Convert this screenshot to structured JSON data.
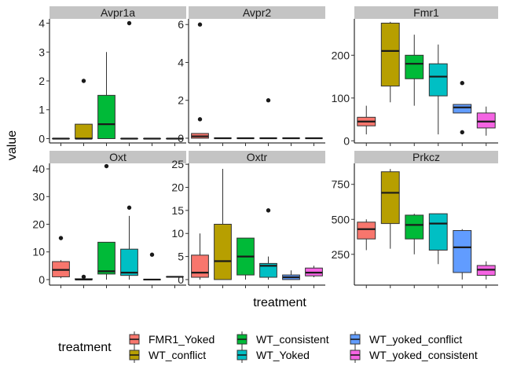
{
  "chart_data": {
    "type": "boxplot",
    "xlabel": "treatment",
    "ylabel": "value",
    "legend_title": "treatment",
    "legend_position": "bottom",
    "grid": false,
    "groups": [
      "FMR1_Yoked",
      "WT_conflict",
      "WT_consistent",
      "WT_Yoked",
      "WT_yoked_conflict",
      "WT_yoked_consistent"
    ],
    "colors": [
      "#F8766D",
      "#B79F00",
      "#00BA38",
      "#00BFC4",
      "#619CFF",
      "#F564E3"
    ],
    "panels": [
      {
        "name": "Avpr1a",
        "ylim": [
          -0.15,
          4.15
        ],
        "yticks": [
          0,
          1,
          2,
          3,
          4
        ],
        "ytick_labels": [
          "0",
          "1",
          "2",
          "3",
          "4"
        ],
        "boxes": [
          {
            "min": 0,
            "q1": 0,
            "median": 0,
            "q3": 0,
            "max": 0,
            "outliers": []
          },
          {
            "min": 0,
            "q1": 0,
            "median": 0,
            "q3": 0.5,
            "max": 0.5,
            "outliers": [
              2
            ]
          },
          {
            "min": 0,
            "q1": 0,
            "median": 0.5,
            "q3": 1.5,
            "max": 3.0,
            "outliers": []
          },
          {
            "min": 0,
            "q1": 0,
            "median": 0,
            "q3": 0,
            "max": 0,
            "outliers": [
              4
            ]
          },
          {
            "min": 0,
            "q1": 0,
            "median": 0,
            "q3": 0,
            "max": 0,
            "outliers": []
          },
          {
            "min": 0,
            "q1": 0,
            "median": 0,
            "q3": 0,
            "max": 0,
            "outliers": []
          }
        ]
      },
      {
        "name": "Avpr2",
        "ylim": [
          -0.25,
          6.3
        ],
        "yticks": [
          0,
          2,
          4,
          6
        ],
        "ytick_labels": [
          "0",
          "2",
          "4",
          "6"
        ],
        "boxes": [
          {
            "min": 0,
            "q1": 0,
            "median": 0.1,
            "q3": 0.25,
            "max": 0.25,
            "outliers": [
              1,
              6
            ]
          },
          {
            "min": 0,
            "q1": 0,
            "median": 0,
            "q3": 0,
            "max": 0,
            "outliers": []
          },
          {
            "min": 0,
            "q1": 0,
            "median": 0,
            "q3": 0,
            "max": 0,
            "outliers": []
          },
          {
            "min": 0,
            "q1": 0,
            "median": 0,
            "q3": 0,
            "max": 0,
            "outliers": [
              2
            ]
          },
          {
            "min": 0,
            "q1": 0,
            "median": 0,
            "q3": 0,
            "max": 0,
            "outliers": []
          },
          {
            "min": 0,
            "q1": 0,
            "median": 0,
            "q3": 0,
            "max": 0,
            "outliers": []
          }
        ]
      },
      {
        "name": "Fmr1",
        "ylim": [
          -5,
          285
        ],
        "yticks": [
          0,
          100,
          200
        ],
        "ytick_labels": [
          "0",
          "100",
          "200"
        ],
        "boxes": [
          {
            "min": 15,
            "q1": 35,
            "median": 45,
            "q3": 55,
            "max": 82,
            "outliers": []
          },
          {
            "min": 90,
            "q1": 128,
            "median": 210,
            "q3": 275,
            "max": 278,
            "outliers": []
          },
          {
            "min": 82,
            "q1": 145,
            "median": 180,
            "q3": 200,
            "max": 248,
            "outliers": []
          },
          {
            "min": 15,
            "q1": 105,
            "median": 150,
            "q3": 180,
            "max": 225,
            "outliers": []
          },
          {
            "min": 65,
            "q1": 65,
            "median": 78,
            "q3": 85,
            "max": 85,
            "outliers": [
              135,
              20
            ]
          },
          {
            "min": 12,
            "q1": 30,
            "median": 45,
            "q3": 65,
            "max": 80,
            "outliers": []
          }
        ]
      },
      {
        "name": "Oxt",
        "ylim": [
          -2,
          42
        ],
        "yticks": [
          0,
          10,
          20,
          30,
          40
        ],
        "ytick_labels": [
          "0",
          "10",
          "20",
          "30",
          "40"
        ],
        "boxes": [
          {
            "min": 0.5,
            "q1": 1,
            "median": 3.5,
            "q3": 6.5,
            "max": 7,
            "outliers": [
              15
            ]
          },
          {
            "min": 0,
            "q1": 0,
            "median": 0,
            "q3": 0.3,
            "max": 0.5,
            "outliers": [
              1
            ]
          },
          {
            "min": 0,
            "q1": 2,
            "median": 3,
            "q3": 13.5,
            "max": 13.5,
            "outliers": [
              41
            ]
          },
          {
            "min": 0,
            "q1": 1.5,
            "median": 2.5,
            "q3": 11,
            "max": 23,
            "outliers": [
              26
            ]
          },
          {
            "min": 0,
            "q1": 0,
            "median": 0,
            "q3": 0,
            "max": 0,
            "outliers": [
              9
            ]
          },
          {
            "min": 1,
            "q1": 1,
            "median": 1,
            "q3": 1,
            "max": 1,
            "outliers": []
          }
        ]
      },
      {
        "name": "Oxtr",
        "ylim": [
          -1.2,
          25.2
        ],
        "yticks": [
          0,
          5,
          10,
          15,
          20,
          25
        ],
        "ytick_labels": [
          "0",
          "5",
          "10",
          "15",
          "20",
          "25"
        ],
        "boxes": [
          {
            "min": 0,
            "q1": 0.5,
            "median": 1.5,
            "q3": 5.3,
            "max": 10,
            "outliers": []
          },
          {
            "min": 0,
            "q1": 0,
            "median": 4,
            "q3": 12,
            "max": 24,
            "outliers": []
          },
          {
            "min": 0,
            "q1": 1,
            "median": 5,
            "q3": 9,
            "max": 9,
            "outliers": []
          },
          {
            "min": 0,
            "q1": 0.5,
            "median": 3,
            "q3": 3.5,
            "max": 5,
            "outliers": [
              15
            ]
          },
          {
            "min": 0,
            "q1": 0,
            "median": 0.5,
            "q3": 1,
            "max": 2,
            "outliers": []
          },
          {
            "min": 0.5,
            "q1": 0.8,
            "median": 1.5,
            "q3": 2.5,
            "max": 3,
            "outliers": []
          }
        ]
      },
      {
        "name": "Prkcz",
        "ylim": [
          30,
          900
        ],
        "yticks": [
          250,
          500,
          750
        ],
        "ytick_labels": [
          "250",
          "500",
          "750"
        ],
        "boxes": [
          {
            "min": 280,
            "q1": 360,
            "median": 430,
            "q3": 480,
            "max": 500,
            "outliers": []
          },
          {
            "min": 290,
            "q1": 470,
            "median": 690,
            "q3": 840,
            "max": 860,
            "outliers": []
          },
          {
            "min": 250,
            "q1": 360,
            "median": 460,
            "q3": 530,
            "max": 540,
            "outliers": []
          },
          {
            "min": 180,
            "q1": 280,
            "median": 470,
            "q3": 540,
            "max": 540,
            "outliers": []
          },
          {
            "min": 70,
            "q1": 120,
            "median": 300,
            "q3": 420,
            "max": 430,
            "outliers": []
          },
          {
            "min": 70,
            "q1": 100,
            "median": 140,
            "q3": 170,
            "max": 200,
            "outliers": []
          }
        ]
      }
    ]
  }
}
